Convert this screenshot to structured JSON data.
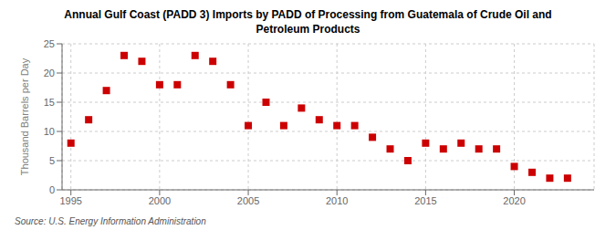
{
  "chart_data": {
    "type": "scatter",
    "title": "Annual Gulf Coast (PADD 3) Imports by PADD of Processing from Guatemala of Crude Oil and\nPetroleum Products",
    "ylabel": "Thousand Barrels per Day",
    "source": "Source: U.S. Energy Information Administration",
    "x": [
      1995,
      1996,
      1997,
      1998,
      1999,
      2000,
      2001,
      2002,
      2003,
      2004,
      2005,
      2006,
      2007,
      2008,
      2009,
      2010,
      2011,
      2012,
      2013,
      2014,
      2015,
      2016,
      2017,
      2018,
      2019,
      2020,
      2021,
      2022,
      2023
    ],
    "values": [
      8,
      12,
      17,
      23,
      22,
      18,
      18,
      23,
      22,
      18,
      11,
      15,
      11,
      14,
      12,
      11,
      11,
      9,
      7,
      5,
      8,
      7,
      8,
      7,
      7,
      4,
      3,
      2,
      2
    ],
    "color": "#cc0000",
    "marker": "square",
    "xlim": [
      1994.5,
      2024.5
    ],
    "ylim": [
      0,
      25
    ],
    "xticks": [
      1995,
      2000,
      2005,
      2010,
      2015,
      2020
    ],
    "yticks": [
      0,
      5,
      10,
      15,
      20,
      25
    ],
    "grid": true
  }
}
